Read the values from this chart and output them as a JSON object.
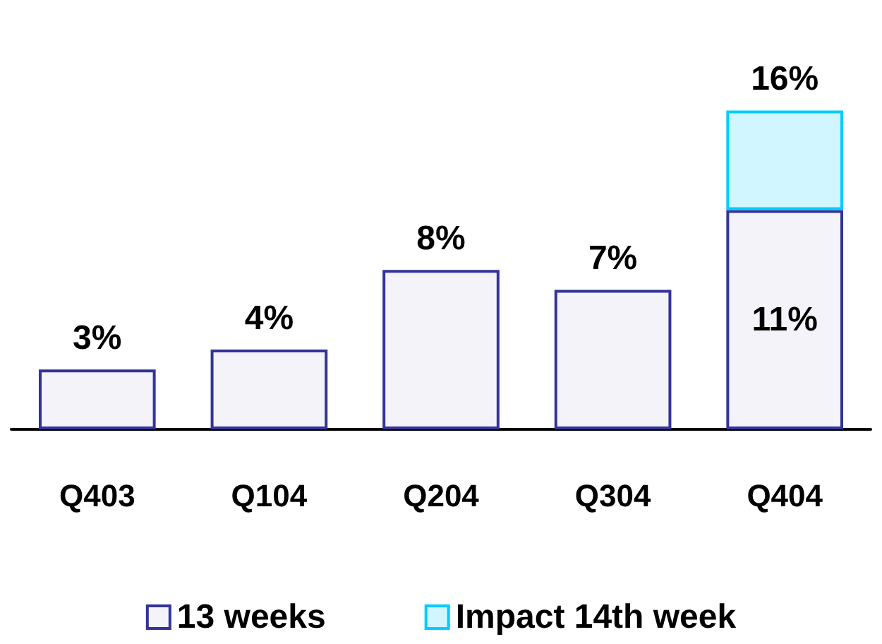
{
  "chart_data": {
    "type": "bar",
    "stacked": true,
    "categories": [
      "Q403",
      "Q104",
      "Q204",
      "Q304",
      "Q404"
    ],
    "series": [
      {
        "name": "13 weeks",
        "color": "#333399",
        "values": [
          3,
          4,
          8,
          7,
          11
        ],
        "value_labels": [
          "3%",
          "4%",
          "8%",
          "7%",
          "11%"
        ]
      },
      {
        "name": "Impact 14th week",
        "color": "#00ccff",
        "values": [
          null,
          null,
          null,
          null,
          5
        ],
        "value_labels": [
          null,
          null,
          null,
          null,
          null
        ]
      }
    ],
    "totals": [
      null,
      null,
      null,
      null,
      "16%"
    ],
    "legend": "bottom",
    "grid": false
  }
}
